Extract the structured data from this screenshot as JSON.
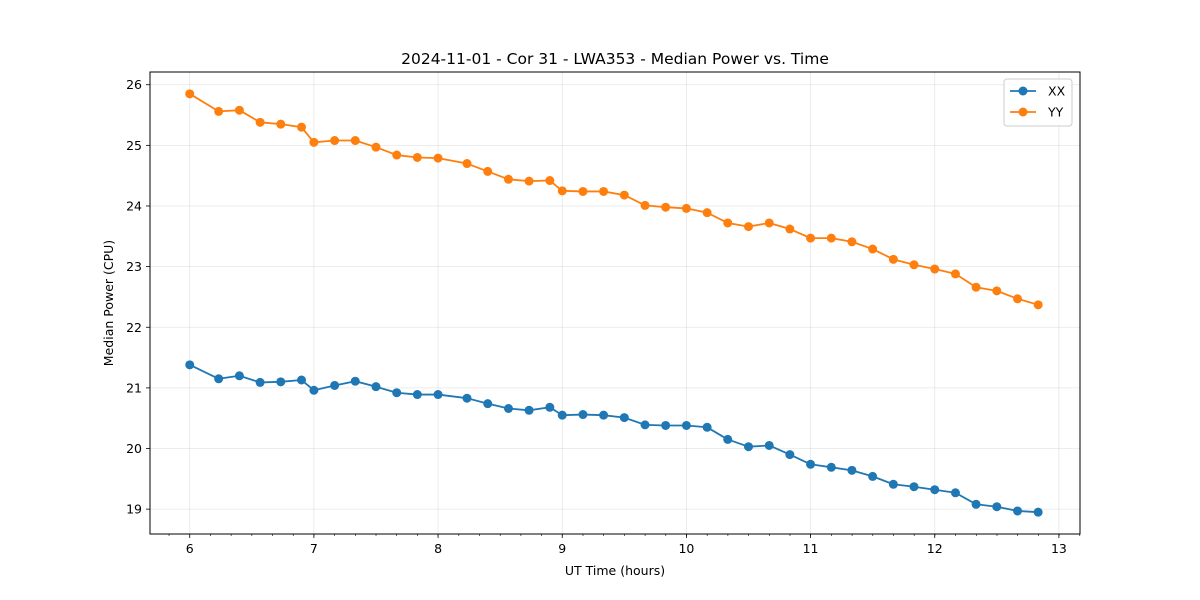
{
  "chart_data": {
    "type": "line",
    "title": "2024-11-01 - Cor 31 - LWA353 - Median Power vs. Time",
    "xlabel": "UT Time (hours)",
    "ylabel": "Median Power (CPU)",
    "xlim": [
      5.68,
      13.17
    ],
    "ylim": [
      18.59,
      26.21
    ],
    "xticks": [
      6,
      7,
      8,
      9,
      10,
      11,
      12,
      13
    ],
    "yticks": [
      19,
      20,
      21,
      22,
      23,
      24,
      25,
      26
    ],
    "x_minor_step": 0.1667,
    "grid": true,
    "legend_position": "top-right",
    "x": [
      6.0,
      6.233,
      6.4,
      6.567,
      6.733,
      6.9,
      7.0,
      7.167,
      7.333,
      7.5,
      7.667,
      7.833,
      8.0,
      8.233,
      8.4,
      8.567,
      8.733,
      8.9,
      9.0,
      9.167,
      9.333,
      9.5,
      9.667,
      9.833,
      10.0,
      10.167,
      10.333,
      10.5,
      10.667,
      10.833,
      11.0,
      11.167,
      11.333,
      11.5,
      11.667,
      11.833,
      12.0,
      12.167,
      12.333,
      12.5,
      12.667,
      12.833
    ],
    "series": [
      {
        "name": "XX",
        "color": "#1f77b4",
        "values": [
          21.38,
          21.15,
          21.2,
          21.09,
          21.1,
          21.13,
          20.96,
          21.04,
          21.11,
          21.02,
          20.92,
          20.89,
          20.89,
          20.83,
          20.74,
          20.66,
          20.63,
          20.68,
          20.55,
          20.56,
          20.55,
          20.51,
          20.39,
          20.38,
          20.38,
          20.35,
          20.15,
          20.03,
          20.05,
          19.9,
          19.74,
          19.69,
          19.64,
          19.54,
          19.41,
          19.37,
          19.32,
          19.27,
          19.08,
          19.04,
          18.97,
          18.95
        ]
      },
      {
        "name": "YY",
        "color": "#ff7f0e",
        "values": [
          25.85,
          25.56,
          25.58,
          25.38,
          25.35,
          25.3,
          25.05,
          25.08,
          25.08,
          24.97,
          24.84,
          24.8,
          24.79,
          24.7,
          24.57,
          24.44,
          24.41,
          24.42,
          24.25,
          24.24,
          24.24,
          24.18,
          24.01,
          23.98,
          23.96,
          23.89,
          23.72,
          23.66,
          23.72,
          23.62,
          23.47,
          23.47,
          23.41,
          23.29,
          23.12,
          23.03,
          22.96,
          22.88,
          22.66,
          22.6,
          22.47,
          22.37
        ]
      }
    ]
  }
}
